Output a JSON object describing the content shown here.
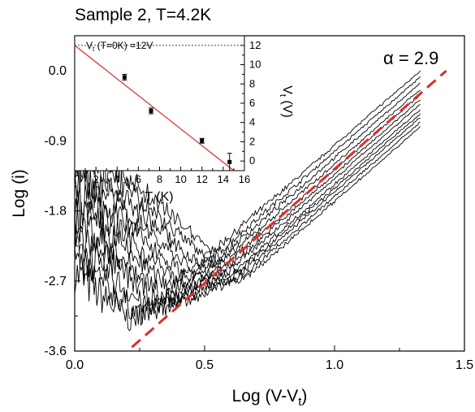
{
  "chart_data": {
    "title": "Sample 2, T=4.2K",
    "annotation": "α = 2.9",
    "main": {
      "type": "line",
      "xlabel_main": "Log (V-V",
      "xlabel_sub": "t",
      "xlabel_close": ")",
      "ylabel": "Log (i)",
      "xlim": [
        0,
        1.5
      ],
      "ylim": [
        -3.6,
        0.45
      ],
      "xticks": [
        0.0,
        0.5,
        1.0,
        1.5
      ],
      "xtick_labels": [
        "0.0",
        "0.5",
        "1.0",
        "1.5"
      ],
      "yticks": [
        0.0,
        -0.9,
        -1.8,
        -2.7,
        -3.6
      ],
      "ytick_labels": [
        "0.0",
        "-0.9",
        "-1.8",
        "-2.7",
        "-3.6"
      ],
      "grid": false,
      "series_count": 12,
      "series_x_range": [
        0.0,
        1.33
      ],
      "series_end_values": [
        0.0,
        -0.08,
        -0.16,
        -0.24,
        -0.31,
        -0.37,
        -0.43,
        -0.5,
        -0.55,
        -0.6,
        -0.66,
        -0.72
      ],
      "fit_line": {
        "x": [
          0.22,
          1.43
        ],
        "y": [
          -3.55,
          0.0
        ],
        "slope": 2.9,
        "color": "#e02b2b",
        "style": "dashed"
      }
    },
    "inset": {
      "type": "scatter",
      "xlabel": "T (K)",
      "ylabel_main": "V",
      "ylabel_sub": "t",
      "ylabel_close": " (V)",
      "xlim": [
        0,
        16
      ],
      "ylim": [
        -1,
        13
      ],
      "xticks": [
        2,
        4,
        6,
        8,
        10,
        12,
        14,
        16
      ],
      "xtick_labels": [
        "2",
        "4",
        "6",
        "8",
        "10",
        "12",
        "14",
        "16"
      ],
      "yticks": [
        0,
        2,
        4,
        6,
        8,
        10,
        12
      ],
      "ytick_labels": [
        "0",
        "2",
        "4",
        "6",
        "8",
        "10",
        "12"
      ],
      "points": [
        {
          "x": 4.7,
          "y": 8.7,
          "err": 0.3
        },
        {
          "x": 7.2,
          "y": 5.2,
          "err": 0.3
        },
        {
          "x": 12.0,
          "y": 2.1,
          "err": 0.25
        },
        {
          "x": 14.6,
          "y": -0.1,
          "err": 0.9
        }
      ],
      "fit_line": {
        "x": [
          0,
          15
        ],
        "y": [
          12,
          -1
        ],
        "color": "#e02b2b"
      },
      "reference_line": {
        "y": 12,
        "style": "dotted"
      },
      "annotation_main": "V",
      "annotation_sub": "t",
      "annotation_rest": " (T=0K) =12V"
    }
  }
}
